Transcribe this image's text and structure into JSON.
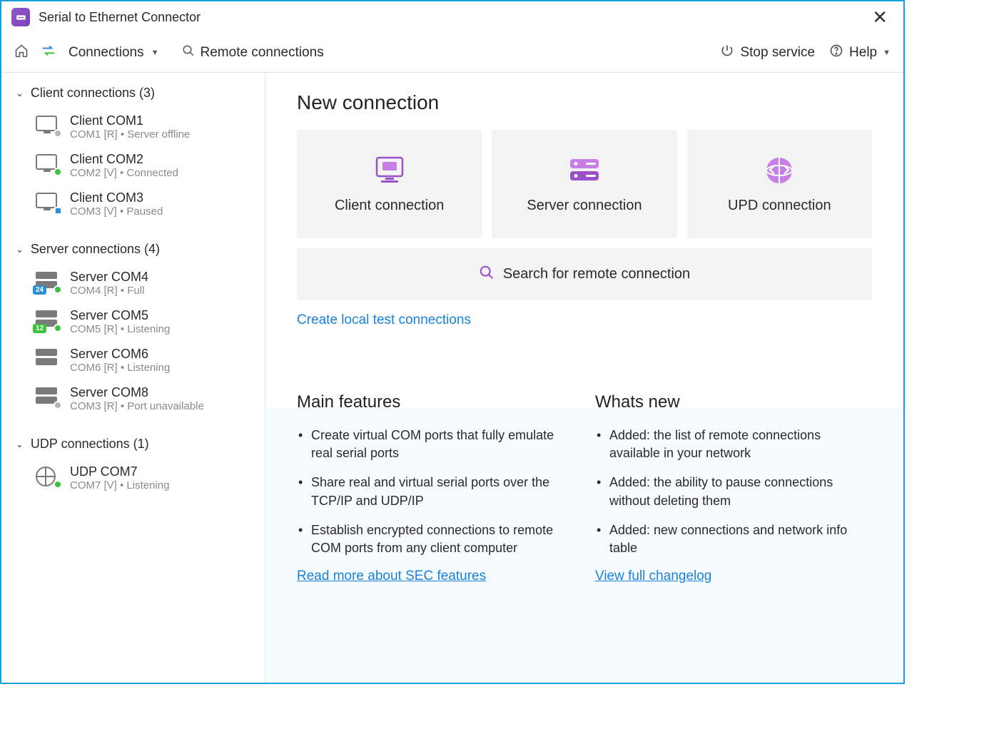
{
  "app": {
    "title": "Serial to Ethernet Connector"
  },
  "toolbar": {
    "connections": "Connections",
    "remote": "Remote connections",
    "stop": "Stop service",
    "help": "Help"
  },
  "sidebar": {
    "groups": [
      {
        "title": "Client connections (3)",
        "items": [
          {
            "name": "Client COM1",
            "sub": "COM1 [R] • Server offline",
            "icon": "monitor",
            "status": "gray"
          },
          {
            "name": "Client COM2",
            "sub": "COM2 [V] • Connected",
            "icon": "monitor",
            "status": "green"
          },
          {
            "name": "Client COM3",
            "sub": "COM3 [V] • Paused",
            "icon": "monitor",
            "status": "pause"
          }
        ]
      },
      {
        "title": "Server connections (4)",
        "items": [
          {
            "name": "Server COM4",
            "sub": "COM4 [R] • Full",
            "icon": "server",
            "badge": "24",
            "badgeColor": "blue",
            "status": "green"
          },
          {
            "name": "Server COM5",
            "sub": "COM5 [R] • Listening",
            "icon": "server",
            "badge": "12",
            "badgeColor": "green",
            "status": "green"
          },
          {
            "name": "Server COM6",
            "sub": "COM6 [R] • Listening",
            "icon": "server"
          },
          {
            "name": "Server COM8",
            "sub": "COM3 [R] • Port unavailable",
            "icon": "server",
            "status": "gray"
          }
        ]
      },
      {
        "title": "UDP connections (1)",
        "items": [
          {
            "name": "UDP COM7",
            "sub": "COM7 [V] • Listening",
            "icon": "globe",
            "status": "green"
          }
        ]
      }
    ]
  },
  "main": {
    "heading": "New connection",
    "cards": [
      {
        "label": "Client connection",
        "icon": "client"
      },
      {
        "label": "Server connection",
        "icon": "server"
      },
      {
        "label": "UPD connection",
        "icon": "udp"
      }
    ],
    "searchLabel": "Search for remote connection",
    "createLink": "Create local test connections",
    "featuresTitle": "Main features",
    "features": [
      "Create virtual COM ports that fully emulate real serial ports",
      "Share real and virtual serial ports over the TCP/IP and UDP/IP",
      "Establish encrypted connections to remote COM ports from any client computer"
    ],
    "featuresLink": "Read more about SEC features",
    "newsTitle": "Whats new",
    "news": [
      "Added: the list of remote connections available in your network",
      "Added: the ability to pause connections without deleting them",
      "Added: new connections and network info table"
    ],
    "newsLink": "View full changelog"
  },
  "colors": {
    "accent": "#9b4fc9",
    "link": "#1a82d8",
    "border": "#1a9fd8"
  }
}
